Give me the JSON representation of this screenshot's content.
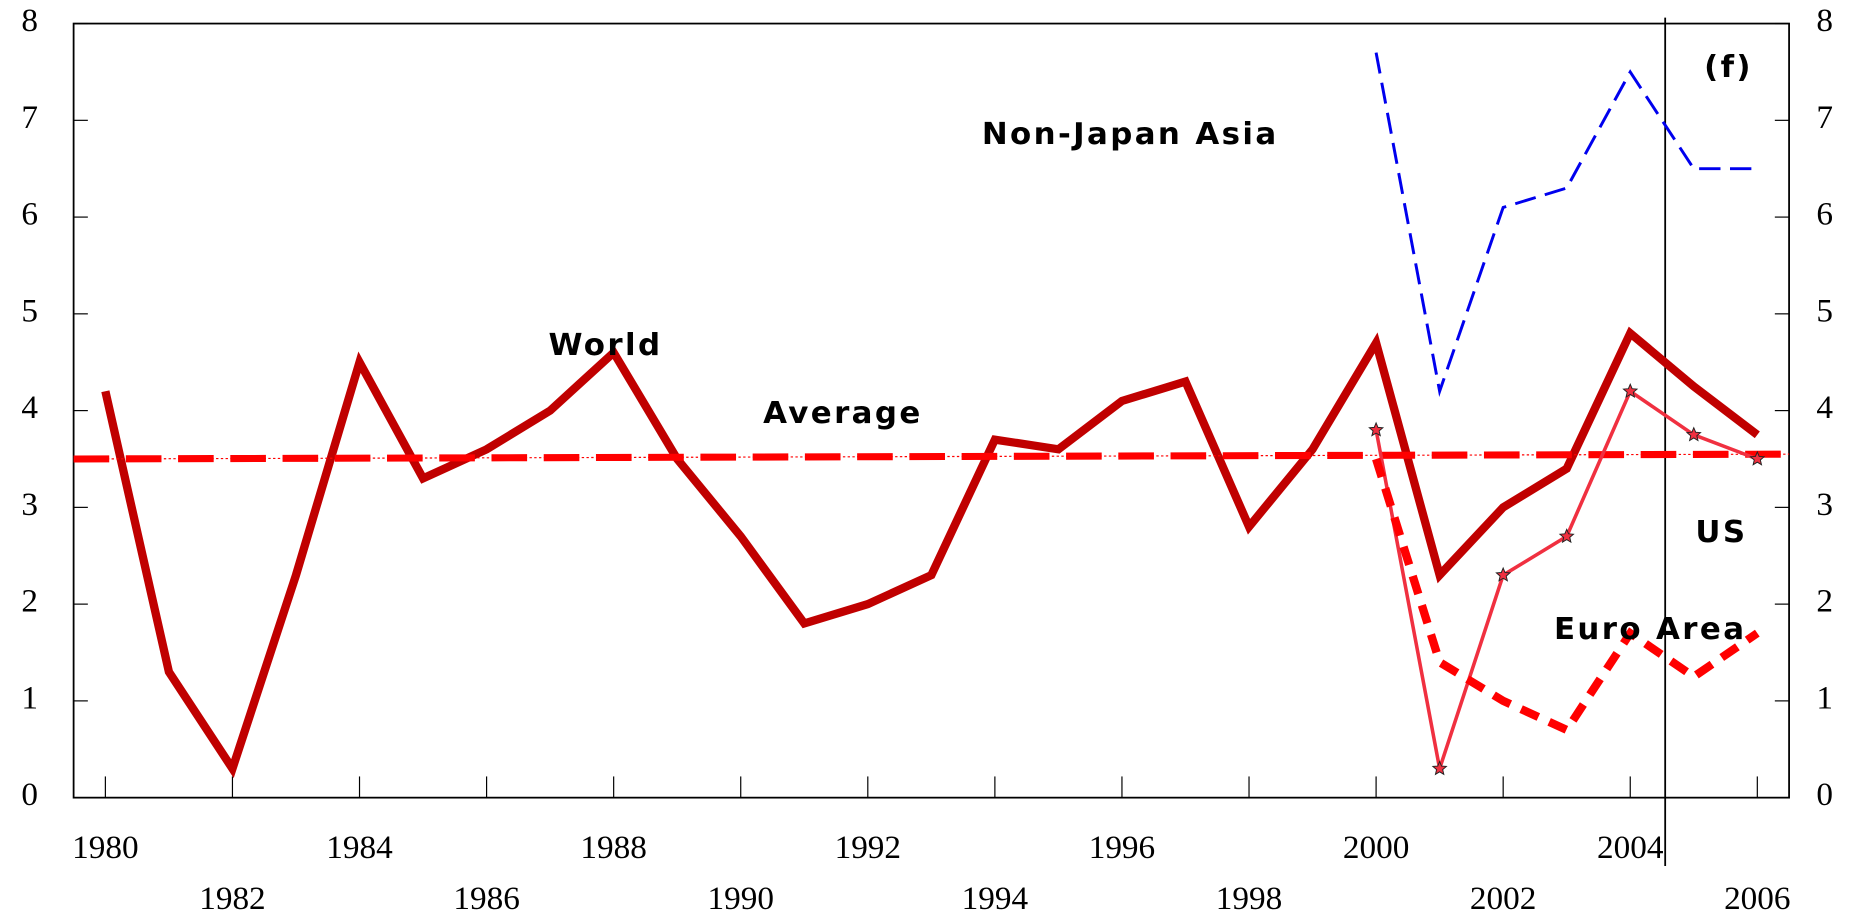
{
  "chart_data": {
    "type": "line",
    "x": [
      1980,
      1981,
      1982,
      1983,
      1984,
      1985,
      1986,
      1987,
      1988,
      1989,
      1990,
      1991,
      1992,
      1993,
      1994,
      1995,
      1996,
      1997,
      1998,
      1999,
      2000,
      2001,
      2002,
      2003,
      2004,
      2005,
      2006
    ],
    "series": [
      {
        "name": "World",
        "color": "#c00000",
        "x": [
          1980,
          1981,
          1982,
          1983,
          1984,
          1985,
          1986,
          1987,
          1988,
          1989,
          1990,
          1991,
          1992,
          1993,
          1994,
          1995,
          1996,
          1997,
          1998,
          1999,
          2000,
          2001,
          2002,
          2003,
          2004,
          2005,
          2006
        ],
        "values": [
          4.2,
          1.3,
          0.3,
          2.3,
          4.5,
          3.3,
          3.6,
          4.0,
          4.6,
          3.5,
          2.7,
          1.8,
          2.0,
          2.3,
          3.7,
          3.6,
          4.1,
          4.3,
          2.8,
          3.6,
          4.7,
          2.3,
          3.0,
          3.4,
          4.8,
          4.25,
          3.75
        ]
      },
      {
        "name": "Average",
        "color": "#ff0000",
        "x": [
          1979.5,
          2006.5
        ],
        "values": [
          3.5,
          3.55
        ]
      },
      {
        "name": "US",
        "color": "#f03040",
        "x": [
          2000,
          2001,
          2002,
          2003,
          2004,
          2005,
          2006
        ],
        "values": [
          3.8,
          0.3,
          2.3,
          2.7,
          4.2,
          3.75,
          3.5
        ]
      },
      {
        "name": "Euro Area",
        "color": "#ff0000",
        "x": [
          2000,
          2001,
          2002,
          2003,
          2004,
          2005,
          2006
        ],
        "values": [
          3.5,
          1.4,
          1.0,
          0.7,
          1.7,
          1.25,
          1.7
        ]
      },
      {
        "name": "Non-Japan Asia",
        "color": "#0000ee",
        "x": [
          2000,
          2001,
          2002,
          2003,
          2004,
          2005,
          2006
        ],
        "values": [
          7.7,
          4.2,
          6.1,
          6.3,
          7.5,
          6.5,
          6.5
        ]
      }
    ],
    "annotations": [
      "(f)"
    ],
    "xlim": [
      1979.5,
      2006.5
    ],
    "xticks": [
      1980,
      1982,
      1984,
      1986,
      1988,
      1990,
      1992,
      1994,
      1996,
      1998,
      2000,
      2002,
      2004,
      2006
    ],
    "forecast_line": 2004.55,
    "ylim": [
      0,
      8
    ],
    "yticks": [
      0,
      1,
      2,
      3,
      4,
      5,
      6,
      7,
      8
    ],
    "y2lim": [
      0,
      8
    ],
    "y2ticks": [
      0,
      1,
      2,
      3,
      4,
      5,
      6,
      7,
      8
    ]
  }
}
